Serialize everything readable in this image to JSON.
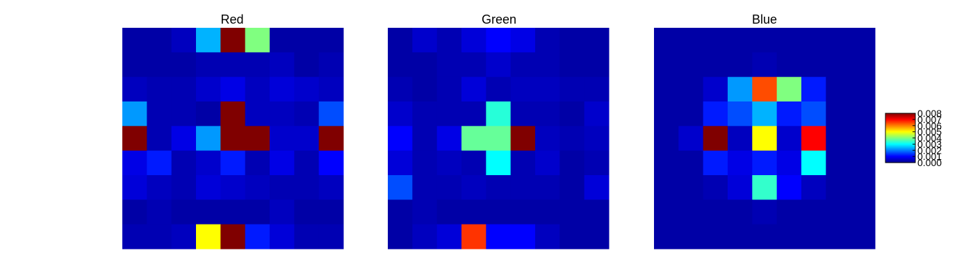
{
  "chart_data": {
    "type": "heatmap",
    "colormap": "jet",
    "colorbar": {
      "min": 0.0,
      "max": 0.008,
      "ticks": [
        "0.000",
        "0.001",
        "0.002",
        "0.003",
        "0.004",
        "0.005",
        "0.006",
        "0.007",
        "0.008"
      ]
    },
    "panels": [
      {
        "title": "Red",
        "grid": [
          [
            0.0003,
            0.0003,
            0.0005,
            0.0024,
            0.008,
            0.004,
            0.0003,
            0.0003,
            0.0003
          ],
          [
            0.0003,
            0.0003,
            0.0003,
            0.0004,
            0.0004,
            0.0004,
            0.0005,
            0.0003,
            0.0004
          ],
          [
            0.0005,
            0.0004,
            0.0004,
            0.0006,
            0.0008,
            0.0005,
            0.0007,
            0.0006,
            0.0005
          ],
          [
            0.0022,
            0.0004,
            0.0004,
            0.0003,
            0.008,
            0.0005,
            0.0005,
            0.0004,
            0.0016
          ],
          [
            0.008,
            0.0004,
            0.0008,
            0.0022,
            0.008,
            0.008,
            0.0006,
            0.0006,
            0.008
          ],
          [
            0.0008,
            0.0012,
            0.0004,
            0.0006,
            0.0012,
            0.0004,
            0.0008,
            0.0004,
            0.001
          ],
          [
            0.0007,
            0.0005,
            0.0004,
            0.0007,
            0.0006,
            0.0005,
            0.0004,
            0.0004,
            0.0005
          ],
          [
            0.0003,
            0.0004,
            0.0003,
            0.0003,
            0.0003,
            0.0003,
            0.0005,
            0.0003,
            0.0003
          ],
          [
            0.0004,
            0.0004,
            0.0005,
            0.005,
            0.008,
            0.0012,
            0.0007,
            0.0004,
            0.0004
          ]
        ]
      },
      {
        "title": "Green",
        "grid": [
          [
            0.0003,
            0.0006,
            0.0004,
            0.0007,
            0.001,
            0.0008,
            0.0004,
            0.0003,
            0.0003
          ],
          [
            0.0003,
            0.0003,
            0.0004,
            0.0004,
            0.0006,
            0.0004,
            0.0004,
            0.0003,
            0.0003
          ],
          [
            0.0004,
            0.0003,
            0.0004,
            0.0007,
            0.0004,
            0.0005,
            0.0005,
            0.0004,
            0.0004
          ],
          [
            0.0006,
            0.0004,
            0.0004,
            0.0004,
            0.0033,
            0.0004,
            0.0004,
            0.0003,
            0.0006
          ],
          [
            0.001,
            0.0004,
            0.0008,
            0.0038,
            0.0038,
            0.008,
            0.0005,
            0.0004,
            0.0005
          ],
          [
            0.0007,
            0.0004,
            0.0005,
            0.0004,
            0.003,
            0.0004,
            0.0006,
            0.0003,
            0.0004
          ],
          [
            0.0016,
            0.0004,
            0.0004,
            0.0005,
            0.0004,
            0.0004,
            0.0004,
            0.0003,
            0.0007
          ],
          [
            0.0003,
            0.0004,
            0.0003,
            0.0003,
            0.0003,
            0.0003,
            0.0003,
            0.0003,
            0.0003
          ],
          [
            0.0003,
            0.0005,
            0.0007,
            0.0066,
            0.001,
            0.001,
            0.0005,
            0.0003,
            0.0003
          ]
        ]
      },
      {
        "title": "Blue",
        "grid": [
          [
            0.0003,
            0.0003,
            0.0003,
            0.0003,
            0.0003,
            0.0003,
            0.0003,
            0.0003,
            0.0003
          ],
          [
            0.0003,
            0.0003,
            0.0003,
            0.0003,
            0.0004,
            0.0003,
            0.0003,
            0.0003,
            0.0003
          ],
          [
            0.0003,
            0.0003,
            0.0006,
            0.0022,
            0.0064,
            0.004,
            0.0012,
            0.0003,
            0.0003
          ],
          [
            0.0003,
            0.0003,
            0.0012,
            0.0016,
            0.0024,
            0.0012,
            0.0016,
            0.0003,
            0.0003
          ],
          [
            0.0003,
            0.0006,
            0.008,
            0.0005,
            0.005,
            0.0006,
            0.007,
            0.0003,
            0.0003
          ],
          [
            0.0003,
            0.0003,
            0.0012,
            0.0008,
            0.0012,
            0.0008,
            0.003,
            0.0003,
            0.0003
          ],
          [
            0.0003,
            0.0003,
            0.0004,
            0.0007,
            0.0034,
            0.001,
            0.0005,
            0.0003,
            0.0003
          ],
          [
            0.0003,
            0.0003,
            0.0003,
            0.0003,
            0.0004,
            0.0003,
            0.0003,
            0.0003,
            0.0003
          ],
          [
            0.0003,
            0.0003,
            0.0003,
            0.0003,
            0.0003,
            0.0003,
            0.0003,
            0.0003,
            0.0003
          ]
        ]
      }
    ]
  }
}
